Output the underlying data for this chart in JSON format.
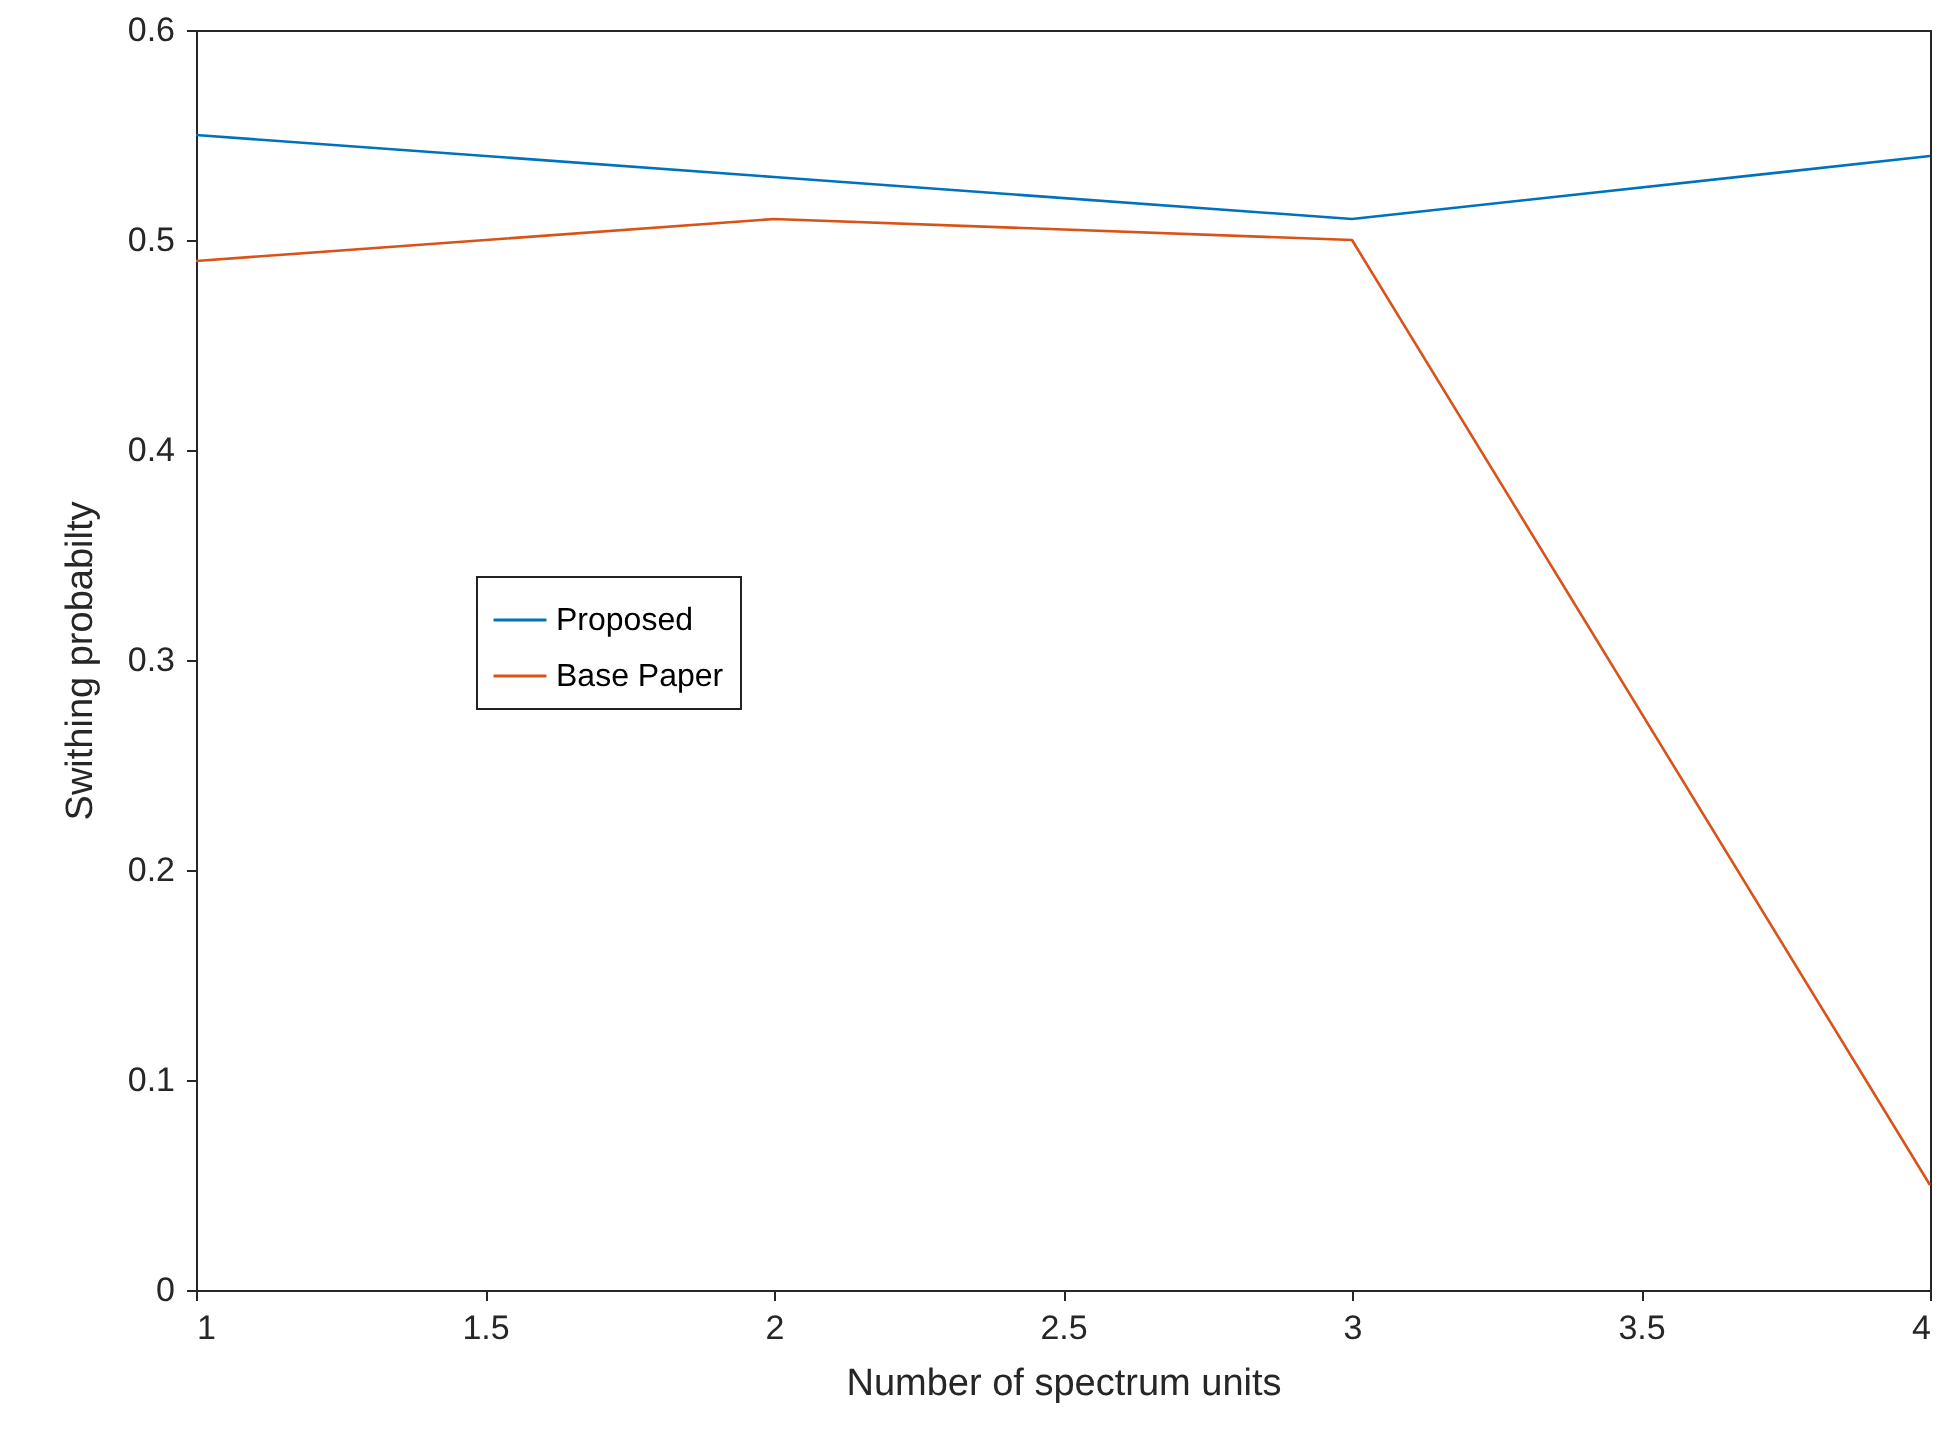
{
  "chart_data": {
    "type": "line",
    "xlabel": "Number of spectrum units",
    "ylabel": "Swithing probabilty",
    "x": [
      1,
      2,
      3,
      4
    ],
    "series": [
      {
        "name": "Proposed",
        "color": "#0072bd",
        "values": [
          0.55,
          0.53,
          0.51,
          0.54
        ]
      },
      {
        "name": "Base Paper",
        "color": "#d95319",
        "values": [
          0.49,
          0.51,
          0.5,
          0.05
        ]
      }
    ],
    "xlim": [
      1,
      4
    ],
    "xticks": [
      1,
      1.5,
      2,
      2.5,
      3,
      3.5,
      4
    ],
    "ylim": [
      0,
      0.6
    ],
    "yticks": [
      0,
      0.1,
      0.2,
      0.3,
      0.4,
      0.5,
      0.6
    ],
    "legend": "left"
  }
}
